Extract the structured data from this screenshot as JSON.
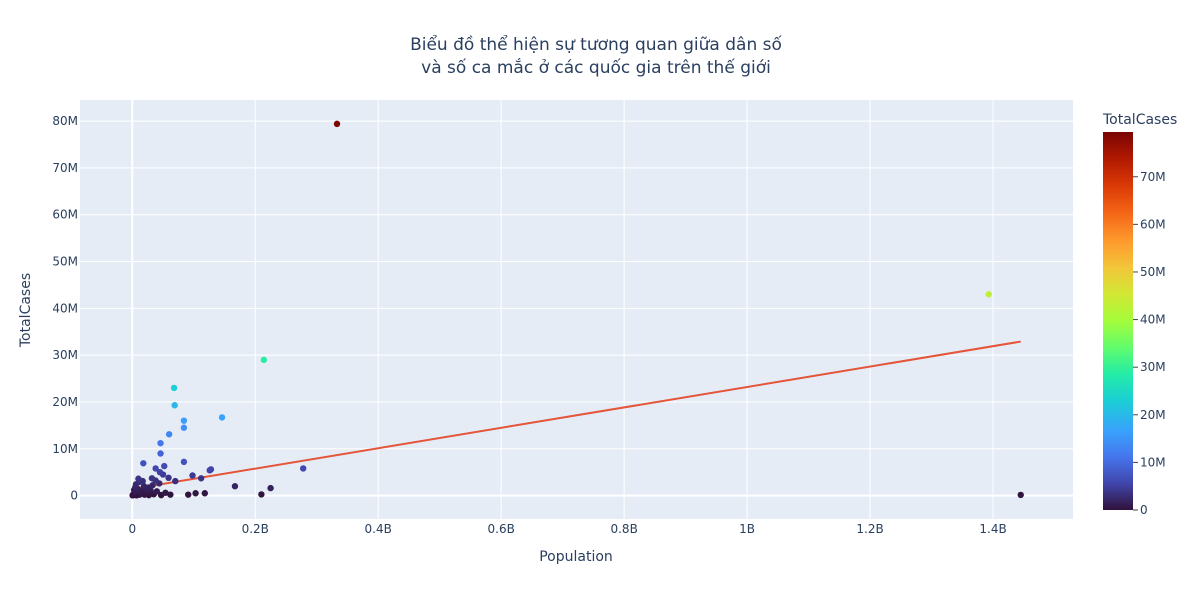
{
  "chart_data": {
    "type": "scatter",
    "title_lines": [
      "Biểu đồ thể hiện sự tương quan giữa dân số",
      "và số ca mắc ở các quốc gia trên thế giới"
    ],
    "xlabel": "Population",
    "ylabel": "TotalCases",
    "xlim": [
      -85000000,
      1530000000
    ],
    "ylim": [
      -5000000,
      84500000
    ],
    "x_ticks": [
      {
        "value": 0,
        "label": "0"
      },
      {
        "value": 200000000,
        "label": "0.2B"
      },
      {
        "value": 400000000,
        "label": "0.4B"
      },
      {
        "value": 600000000,
        "label": "0.6B"
      },
      {
        "value": 800000000,
        "label": "0.8B"
      },
      {
        "value": 1000000000,
        "label": "1B"
      },
      {
        "value": 1200000000,
        "label": "1.2B"
      },
      {
        "value": 1400000000,
        "label": "1.4B"
      }
    ],
    "y_ticks": [
      {
        "value": 0,
        "label": "0"
      },
      {
        "value": 10000000,
        "label": "10M"
      },
      {
        "value": 20000000,
        "label": "20M"
      },
      {
        "value": 30000000,
        "label": "30M"
      },
      {
        "value": 40000000,
        "label": "40M"
      },
      {
        "value": 50000000,
        "label": "50M"
      },
      {
        "value": 60000000,
        "label": "60M"
      },
      {
        "value": 70000000,
        "label": "70M"
      },
      {
        "value": 80000000,
        "label": "80M"
      }
    ],
    "points": [
      [
        333000000,
        79400000
      ],
      [
        1393000000,
        43000000
      ],
      [
        214000000,
        29000000
      ],
      [
        68000000,
        23000000
      ],
      [
        69000000,
        19300000
      ],
      [
        146000000,
        16700000
      ],
      [
        84000000,
        16000000
      ],
      [
        84000000,
        14500000
      ],
      [
        60000000,
        13100000
      ],
      [
        46000000,
        11200000
      ],
      [
        46000000,
        9000000
      ],
      [
        84000000,
        7200000
      ],
      [
        18000000,
        6900000
      ],
      [
        278000000,
        5800000
      ],
      [
        38000000,
        5800000
      ],
      [
        52000000,
        6300000
      ],
      [
        126000000,
        5400000
      ],
      [
        128000000,
        5600000
      ],
      [
        45000000,
        5000000
      ],
      [
        50000000,
        4500000
      ],
      [
        98000000,
        4300000
      ],
      [
        112000000,
        3700000
      ],
      [
        59000000,
        3800000
      ],
      [
        70000000,
        3100000
      ],
      [
        17000000,
        3100000
      ],
      [
        32000000,
        3700000
      ],
      [
        38000000,
        3200000
      ],
      [
        10000000,
        3600000
      ],
      [
        11000000,
        2900000
      ],
      [
        6000000,
        2400000
      ],
      [
        9000000,
        1400000
      ],
      [
        22000000,
        1200000
      ],
      [
        30000000,
        1000000
      ],
      [
        40000000,
        900000
      ],
      [
        25000000,
        500000
      ],
      [
        167000000,
        2000000
      ],
      [
        225000000,
        1600000
      ],
      [
        210000000,
        250000
      ],
      [
        118000000,
        500000
      ],
      [
        103000000,
        500000
      ],
      [
        91000000,
        200000
      ],
      [
        54000000,
        600000
      ],
      [
        62000000,
        200000
      ],
      [
        47000000,
        100000
      ],
      [
        35000000,
        300000
      ],
      [
        27000000,
        100000
      ],
      [
        20000000,
        200000
      ],
      [
        15000000,
        600000
      ],
      [
        8000000,
        900000
      ],
      [
        5000000,
        1800000
      ],
      [
        4000000,
        600000
      ],
      [
        3000000,
        1200000
      ],
      [
        2000000,
        300000
      ],
      [
        1000000,
        100000
      ],
      [
        500000,
        50000
      ],
      [
        12000000,
        200000
      ],
      [
        7000000,
        50000
      ],
      [
        1445000000,
        150000
      ],
      [
        26000000,
        1700000
      ],
      [
        44000000,
        2600000
      ],
      [
        33000000,
        2200000
      ],
      [
        19000000,
        2000000
      ],
      [
        13000000,
        1000000
      ]
    ],
    "trendline": {
      "x": [
        0,
        1445000000
      ],
      "y": [
        1400000,
        32900000
      ],
      "color": "#e4553a"
    },
    "colorbar": {
      "title": "TotalCases",
      "min": 0,
      "max": 79400000,
      "colorscale": "turbo",
      "ticks": [
        {
          "value": 0,
          "label": "0"
        },
        {
          "value": 10000000,
          "label": "10M"
        },
        {
          "value": 20000000,
          "label": "20M"
        },
        {
          "value": 30000000,
          "label": "30M"
        },
        {
          "value": 40000000,
          "label": "40M"
        },
        {
          "value": 50000000,
          "label": "50M"
        },
        {
          "value": 60000000,
          "label": "60M"
        },
        {
          "value": 70000000,
          "label": "70M"
        }
      ]
    },
    "grid": true,
    "plot_bgcolor": "#e5ecf6"
  }
}
